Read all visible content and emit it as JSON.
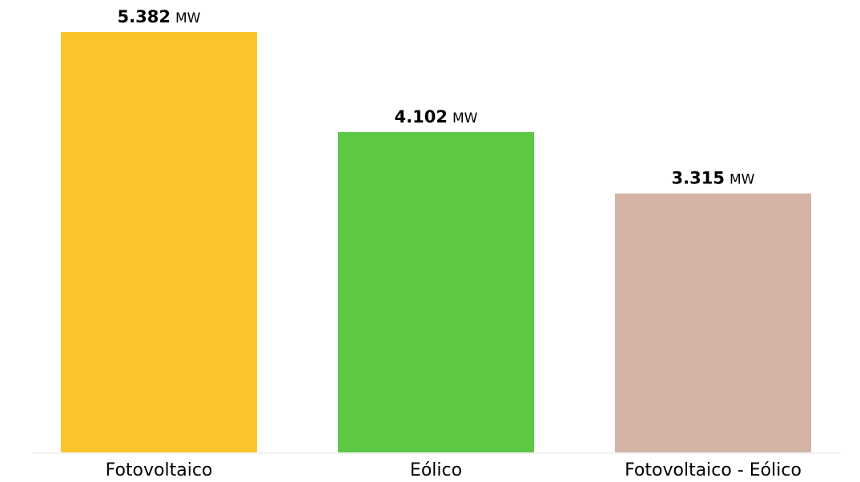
{
  "chart_data": {
    "type": "bar",
    "categories": [
      "Fotovoltaico",
      "Eólico",
      "Fotovoltaico - Eólico"
    ],
    "values": [
      5.382,
      4.102,
      3.315
    ],
    "value_labels": [
      "5.382",
      "4.102",
      "3.315"
    ],
    "unit": "MW",
    "colors": [
      "#fbc42b",
      "#5cc843",
      "#d4b4a5"
    ],
    "title": "",
    "xlabel": "",
    "ylabel": "",
    "ylim": [
      0,
      5.382
    ],
    "grid": false,
    "legend": "none"
  }
}
